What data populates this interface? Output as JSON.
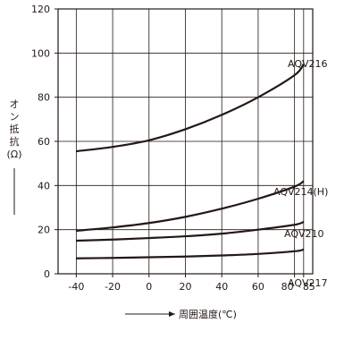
{
  "chart_data": {
    "type": "line",
    "title": "",
    "xlabel": "周囲温度(℃)",
    "ylabel": "オン抵抗(Ω)",
    "xlim": [
      -50,
      90
    ],
    "ylim": [
      0,
      120
    ],
    "x_ticks": [
      -40,
      -20,
      0,
      20,
      40,
      60,
      80,
      85
    ],
    "x_tick_labels": [
      "-40",
      "-20",
      "0",
      "20",
      "40",
      "60",
      "80",
      "85"
    ],
    "y_ticks": [
      0,
      20,
      40,
      60,
      80,
      100,
      120
    ],
    "grid": true,
    "series": [
      {
        "name": "AQV216",
        "x": [
          -40,
          -20,
          0,
          20,
          40,
          60,
          80,
          85
        ],
        "values": [
          55.5,
          57.5,
          60.5,
          65.5,
          72,
          80,
          90,
          95
        ]
      },
      {
        "name": "AQV214(H)",
        "x": [
          -40,
          -20,
          0,
          20,
          40,
          60,
          80,
          85
        ],
        "values": [
          19.5,
          21,
          23,
          25.8,
          29.5,
          34,
          39.5,
          42
        ]
      },
      {
        "name": "AQV210",
        "x": [
          -40,
          -20,
          0,
          20,
          40,
          60,
          80,
          85
        ],
        "values": [
          15,
          15.5,
          16.2,
          17,
          18.2,
          20,
          22.2,
          23.5
        ]
      },
      {
        "name": "AQV217",
        "x": [
          -40,
          -20,
          0,
          20,
          40,
          60,
          80,
          85
        ],
        "values": [
          7,
          7.2,
          7.5,
          7.8,
          8.3,
          9,
          10.2,
          11
        ]
      }
    ]
  }
}
